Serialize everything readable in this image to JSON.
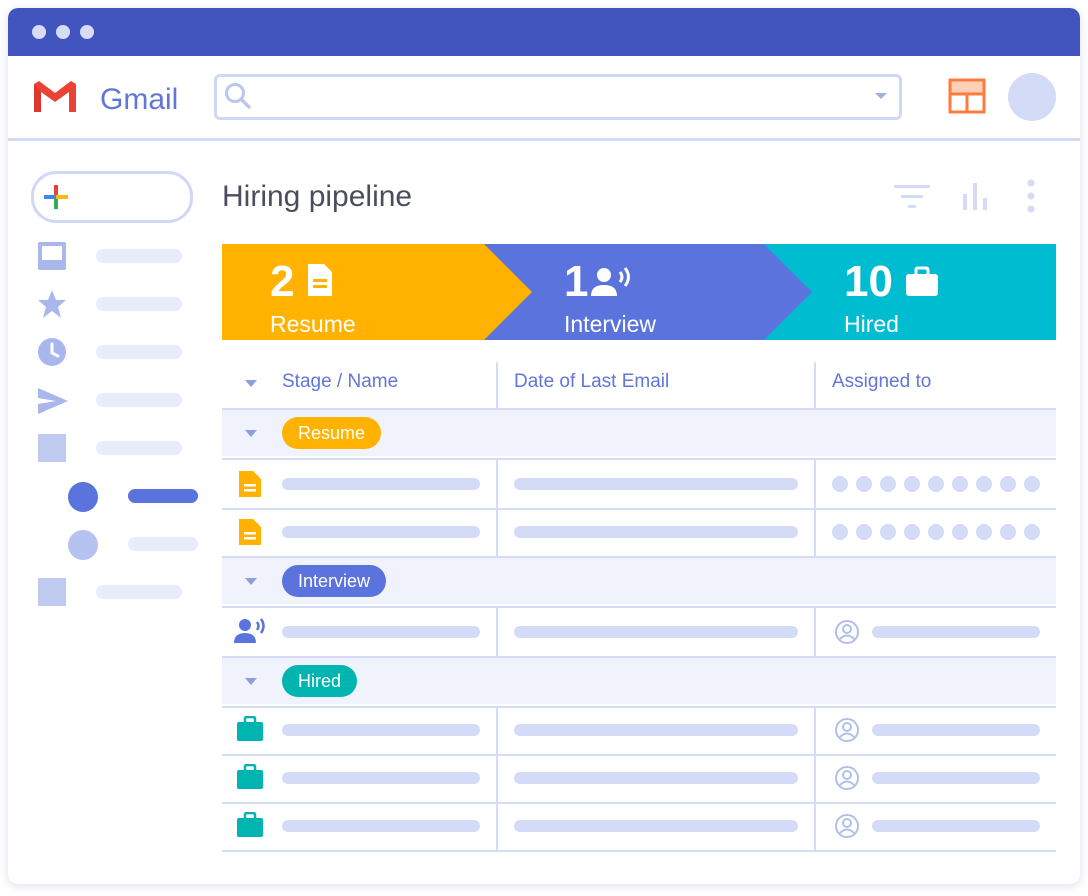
{
  "app": {
    "brand": "Gmail"
  },
  "colors": {
    "titlebar": "#4255be",
    "accent": "#6176d6",
    "resume": "#ffb300",
    "interview": "#5b73dc",
    "hired": "#00bcd0"
  },
  "icons": [
    "search-icon",
    "layout-icon",
    "inbox-icon",
    "star-icon",
    "clock-icon",
    "send-icon",
    "document-icon",
    "speaking-person-icon",
    "briefcase-icon",
    "filter-icon",
    "chart-icon",
    "more-icon",
    "user-circle-icon"
  ],
  "page": {
    "title": "Hiring pipeline"
  },
  "pipeline": [
    {
      "count": "2",
      "label": "Resume"
    },
    {
      "count": "1",
      "label": "Interview"
    },
    {
      "count": "10",
      "label": "Hired"
    }
  ],
  "table": {
    "columns": [
      "Stage / Name",
      "Date of Last Email",
      "Assigned to"
    ],
    "groups": [
      {
        "label": "Resume",
        "rows": 2
      },
      {
        "label": "Interview",
        "rows": 1
      },
      {
        "label": "Hired",
        "rows": 3
      }
    ]
  }
}
